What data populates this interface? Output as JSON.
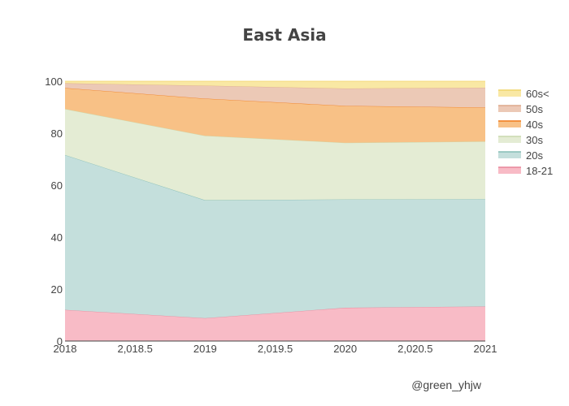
{
  "chart_data": {
    "type": "area",
    "stacked": true,
    "title": "East Asia",
    "xlabel": "",
    "ylabel": "",
    "x": [
      2018,
      2019,
      2020,
      2021
    ],
    "xlim": [
      2018,
      2021
    ],
    "ylim": [
      0,
      100
    ],
    "x_ticks": [
      "2018",
      "2,018.5",
      "2019",
      "2,019.5",
      "2020",
      "2,020.5",
      "2021"
    ],
    "x_tick_values": [
      2018,
      2018.5,
      2019,
      2019.5,
      2020,
      2020.5,
      2021
    ],
    "y_ticks": [
      "0",
      "20",
      "40",
      "60",
      "80",
      "100"
    ],
    "y_tick_values": [
      0,
      20,
      40,
      60,
      80,
      100
    ],
    "grid": false,
    "legend_position": "right",
    "series": [
      {
        "name": "18-21",
        "values": [
          12.0,
          8.8,
          12.8,
          13.3
        ],
        "fill": "#f8bbc6",
        "line": "#e8869a"
      },
      {
        "name": "20s",
        "values": [
          59.6,
          45.4,
          41.7,
          41.3
        ],
        "fill": "#c4dfdc",
        "line": "#86bdb6"
      },
      {
        "name": "30s",
        "values": [
          17.7,
          24.8,
          21.8,
          22.2
        ],
        "fill": "#e4ecd4",
        "line": "#c9d9ad"
      },
      {
        "name": "40s",
        "values": [
          8.1,
          14.3,
          14.2,
          13.1
        ],
        "fill": "#f8c186",
        "line": "#f07a1a"
      },
      {
        "name": "50s",
        "values": [
          1.8,
          5.0,
          6.7,
          7.6
        ],
        "fill": "#ecc9b6",
        "line": "#dda88c"
      },
      {
        "name": "60s<",
        "values": [
          0.8,
          1.7,
          2.8,
          2.5
        ],
        "fill": "#f9e8a4",
        "line": "#f0d56a"
      }
    ],
    "annotation": "@green_yhjw"
  }
}
